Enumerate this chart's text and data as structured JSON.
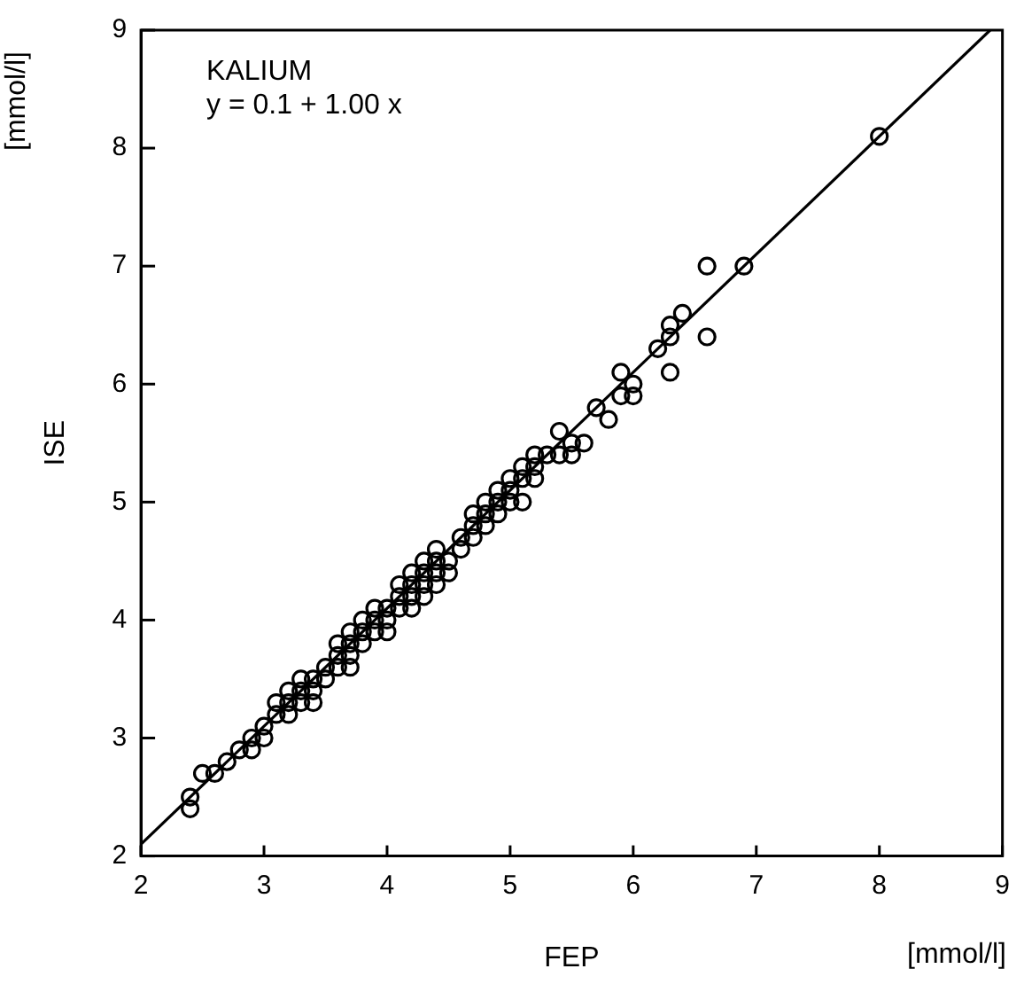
{
  "chart_data": {
    "type": "scatter",
    "title": "KALIUM",
    "xlabel": "FEP",
    "ylabel": "ISE",
    "annotations": [
      "y = 0.1 + 1.00 x",
      "[mmol/l]",
      "[mmol/l]"
    ],
    "xlim": [
      2,
      9
    ],
    "ylim": [
      2,
      9
    ],
    "xticks": [
      2,
      3,
      4,
      5,
      6,
      7,
      8,
      9
    ],
    "yticks": [
      2,
      3,
      4,
      5,
      6,
      7,
      8,
      9
    ],
    "marker": "circle",
    "series": [
      {
        "color": "#000000",
        "x": [
          2.4,
          2.4,
          2.5,
          2.6,
          2.7,
          2.8,
          2.9,
          2.9,
          3.0,
          3.0,
          3.1,
          3.1,
          3.2,
          3.2,
          3.2,
          3.3,
          3.3,
          3.3,
          3.4,
          3.4,
          3.4,
          3.5,
          3.5,
          3.6,
          3.6,
          3.6,
          3.7,
          3.7,
          3.7,
          3.7,
          3.8,
          3.8,
          3.8,
          3.9,
          3.9,
          3.9,
          4.0,
          4.0,
          4.0,
          4.1,
          4.1,
          4.1,
          4.2,
          4.2,
          4.2,
          4.2,
          4.3,
          4.3,
          4.3,
          4.3,
          4.4,
          4.4,
          4.4,
          4.4,
          4.5,
          4.5,
          4.6,
          4.6,
          4.7,
          4.7,
          4.7,
          4.8,
          4.8,
          4.8,
          4.9,
          4.9,
          4.9,
          5.0,
          5.0,
          5.0,
          5.1,
          5.1,
          5.1,
          5.2,
          5.2,
          5.2,
          5.3,
          5.4,
          5.4,
          5.5,
          5.5,
          5.6,
          5.7,
          5.8,
          5.9,
          5.9,
          6.0,
          6.0,
          6.2,
          6.3,
          6.3,
          6.3,
          6.4,
          6.6,
          6.6,
          6.9,
          8.0
        ],
        "values": [
          2.5,
          2.4,
          2.7,
          2.7,
          2.8,
          2.9,
          2.9,
          3.0,
          3.0,
          3.1,
          3.2,
          3.3,
          3.2,
          3.3,
          3.4,
          3.3,
          3.4,
          3.5,
          3.3,
          3.4,
          3.5,
          3.5,
          3.6,
          3.6,
          3.7,
          3.8,
          3.6,
          3.7,
          3.8,
          3.9,
          3.8,
          3.9,
          4.0,
          3.9,
          4.0,
          4.1,
          3.9,
          4.0,
          4.1,
          4.1,
          4.2,
          4.3,
          4.1,
          4.2,
          4.3,
          4.4,
          4.2,
          4.3,
          4.4,
          4.5,
          4.3,
          4.4,
          4.5,
          4.6,
          4.4,
          4.5,
          4.6,
          4.7,
          4.7,
          4.8,
          4.9,
          4.8,
          4.9,
          5.0,
          4.9,
          5.0,
          5.1,
          5.0,
          5.1,
          5.2,
          5.0,
          5.2,
          5.3,
          5.2,
          5.3,
          5.4,
          5.4,
          5.4,
          5.6,
          5.4,
          5.5,
          5.5,
          5.8,
          5.7,
          5.9,
          6.1,
          5.9,
          6.0,
          6.3,
          6.4,
          6.1,
          6.5,
          6.6,
          7.0,
          6.4,
          7.0,
          8.1
        ]
      },
      {
        "type": "line",
        "color": "#000000",
        "marker": "none",
        "line_style": "solid",
        "x": [
          2,
          8.9
        ],
        "values": [
          2.1,
          9.0
        ]
      }
    ]
  }
}
